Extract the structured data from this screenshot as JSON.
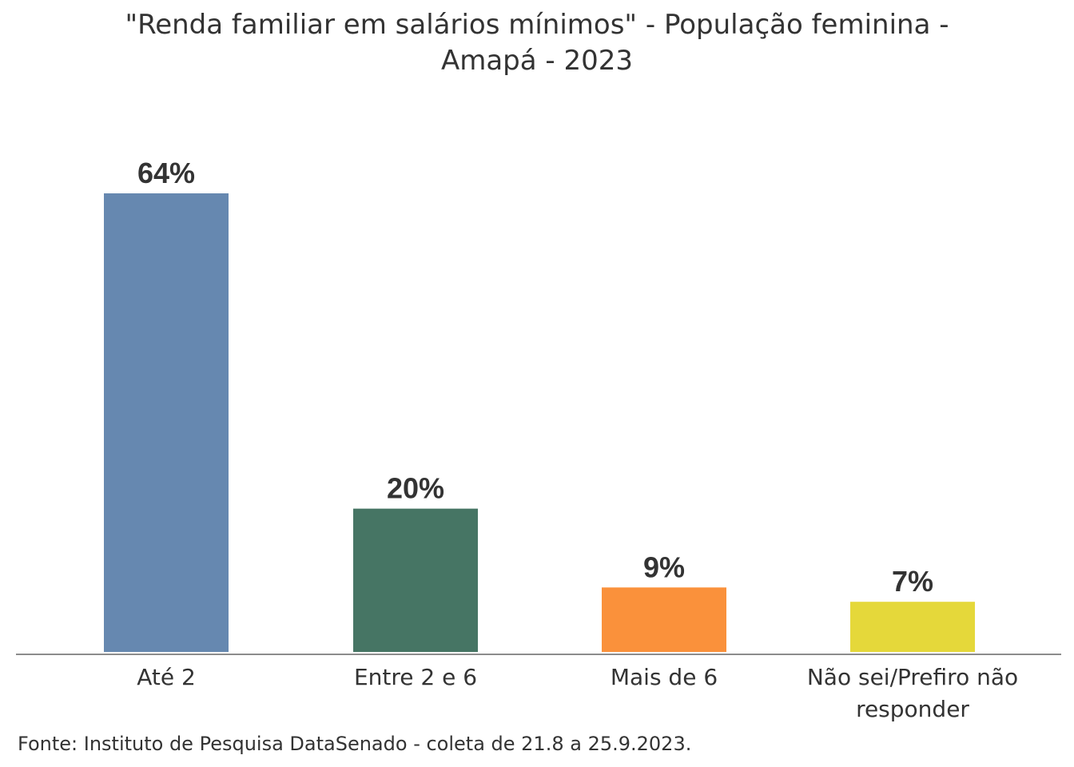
{
  "chart_data": {
    "type": "bar",
    "title_lines": [
      "\"Renda familiar em salários mínimos\" - População feminina -",
      "Amapá - 2023"
    ],
    "categories": [
      [
        "Até 2"
      ],
      [
        "Entre 2 e 6"
      ],
      [
        "Mais de 6"
      ],
      [
        "Não sei/Prefiro não",
        "responder"
      ]
    ],
    "values": [
      64,
      20,
      9,
      7
    ],
    "value_labels": [
      "64%",
      "20%",
      "9%",
      "7%"
    ],
    "colors": [
      "#6688b0",
      "#467564",
      "#fa913b",
      "#e5d83a"
    ],
    "ylim": [
      0,
      64
    ],
    "grid": false,
    "legend": "none",
    "source": "Fonte: Instituto de Pesquisa DataSenado - coleta de 21.8 a 25.9.2023."
  }
}
